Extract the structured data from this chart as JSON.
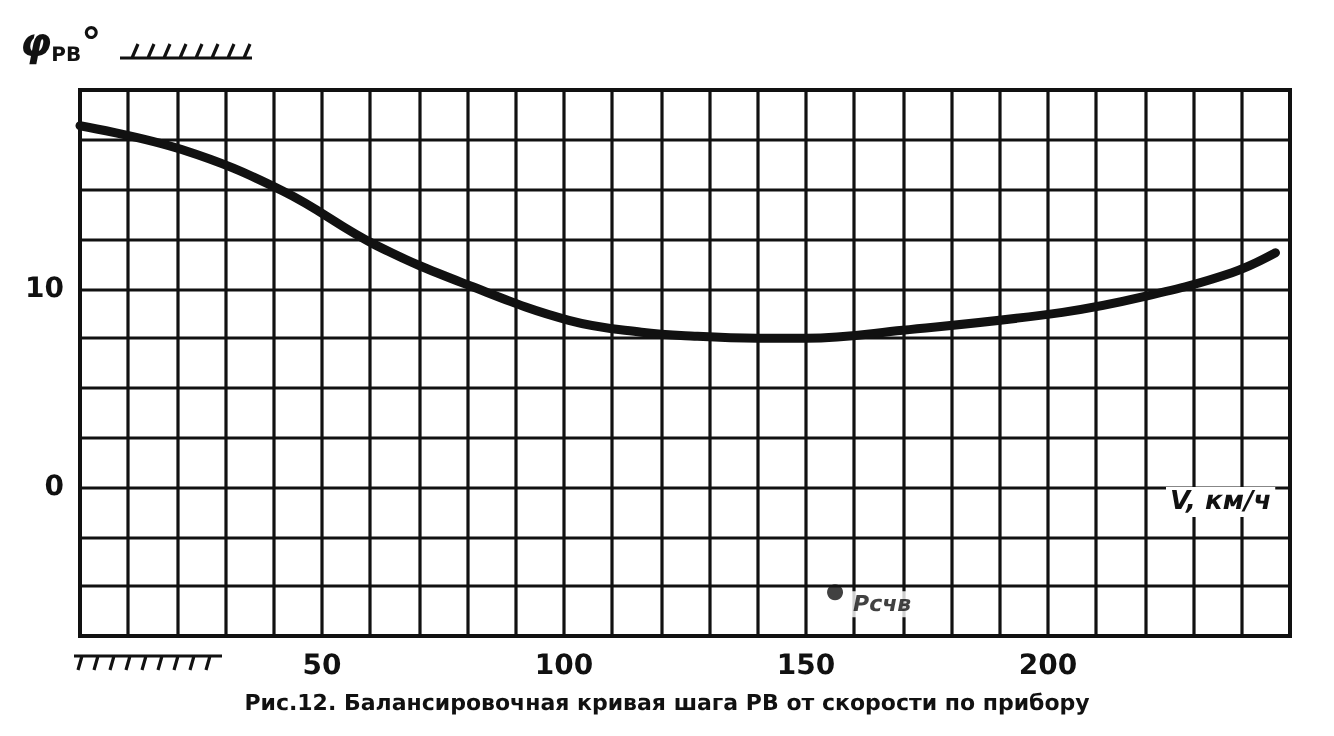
{
  "chart_data": {
    "type": "line",
    "title": "Рис.12. Балансировочная кривая шага РВ от скорости по прибору",
    "xlabel": "V, км/ч",
    "ylabel": "φ$_{РВ}$°",
    "series": [
      {
        "color": "#111111",
        "marker": "none",
        "line_style": "solid",
        "x": [
          0,
          21,
          42,
          61,
          81,
          101,
          116,
          127,
          140,
          150,
          170,
          203,
          220,
          238,
          247
        ],
        "values": [
          18.2,
          17.0,
          14.9,
          12.2,
          10.1,
          8.4,
          7.8,
          7.6,
          7.5,
          7.5,
          7.9,
          8.8,
          9.6,
          10.8,
          11.8
        ]
      },
      {
        "type": "scatter",
        "color": "#111111",
        "marker": "circle",
        "x": [
          156
        ],
        "values": [
          -5.3
        ]
      }
    ],
    "annotations": [
      {
        "text": "Рсчв",
        "x": 156,
        "y": -5.3
      }
    ],
    "xlim": [
      0,
      250
    ],
    "xticks": [
      {
        "value": 0,
        "label": null
      },
      {
        "value": 10,
        "label": null
      },
      {
        "value": 20,
        "label": null
      },
      {
        "value": 30,
        "label": null
      },
      {
        "value": 40,
        "label": null
      },
      50,
      {
        "value": 60,
        "label": null
      },
      {
        "value": 70,
        "label": null
      },
      {
        "value": 80,
        "label": null
      },
      {
        "value": 90,
        "label": null
      },
      100,
      {
        "value": 110,
        "label": null
      },
      {
        "value": 120,
        "label": null
      },
      {
        "value": 130,
        "label": null
      },
      {
        "value": 140,
        "label": null
      },
      150,
      {
        "value": 160,
        "label": null
      },
      {
        "value": 170,
        "label": null
      },
      {
        "value": 180,
        "label": null
      },
      {
        "value": 190,
        "label": null
      },
      200,
      {
        "value": 210,
        "label": null
      },
      {
        "value": 220,
        "label": null
      },
      {
        "value": 230,
        "label": null
      },
      {
        "value": 240,
        "label": null
      },
      {
        "value": 250,
        "label": null
      }
    ],
    "ylim": [
      -7.5,
      20
    ],
    "yticks": [
      {
        "value": -7.5,
        "label": null
      },
      {
        "value": -5,
        "label": null
      },
      {
        "value": -2.5,
        "label": null
      },
      0,
      {
        "value": 2.5,
        "label": null
      },
      {
        "value": 5,
        "label": null
      },
      {
        "value": 7.5,
        "label": null
      },
      10,
      {
        "value": 12.5,
        "label": null
      },
      {
        "value": 15,
        "label": null
      },
      {
        "value": 17.5,
        "label": null
      },
      {
        "value": 20,
        "label": null
      }
    ],
    "grid": true
  }
}
